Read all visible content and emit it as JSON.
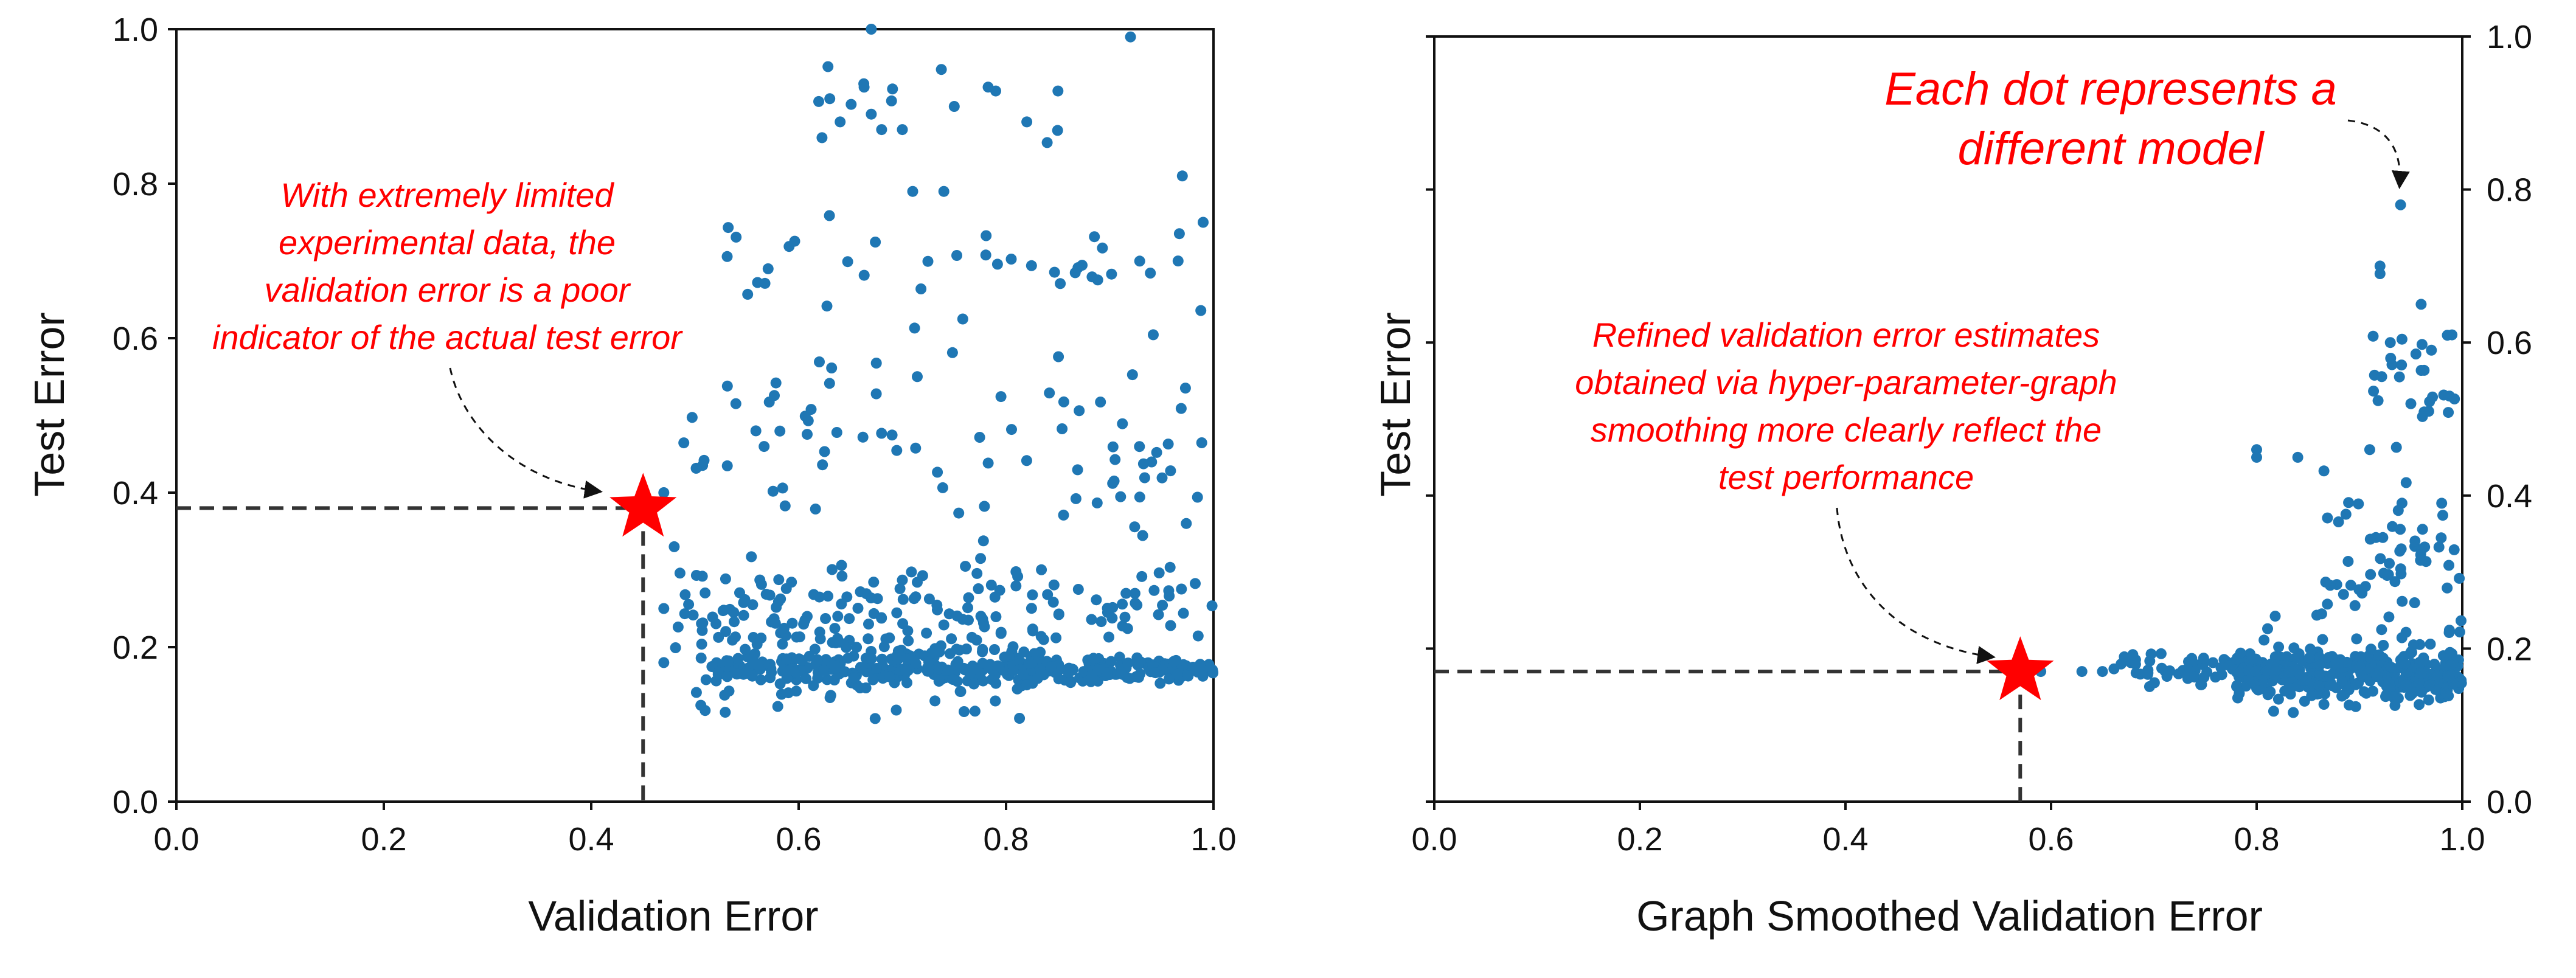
{
  "chart_data": [
    {
      "type": "scatter",
      "title": "",
      "xlabel": "Validation Error",
      "ylabel": "Test Error",
      "xlim": [
        0.0,
        1.0
      ],
      "ylim": [
        0.0,
        1.0
      ],
      "x_ticks": [
        "0.0",
        "0.2",
        "0.4",
        "0.6",
        "0.8",
        "1.0"
      ],
      "y_ticks": [
        "0.0",
        "0.2",
        "0.4",
        "0.6",
        "0.8",
        "1.0"
      ],
      "y_axis_side": "left",
      "grid": false,
      "point_color": "#1f77b4",
      "highlight": {
        "x": 0.45,
        "y": 0.38,
        "marker": "star",
        "color": "#ff0000"
      },
      "annotation": {
        "lines": [
          "With extremely limited",
          "experimental data, the",
          "validation error is a poor",
          "indicator of the actual test error"
        ],
        "color": "#ff0000"
      },
      "seed": 12345,
      "cloud": [
        {
          "n": 330,
          "x": [
            0.52,
            1.0
          ],
          "y": [
            0.15,
            0.19
          ]
        },
        {
          "n": 160,
          "x": [
            0.5,
            0.85
          ],
          "y": [
            0.1,
            0.3
          ]
        },
        {
          "n": 110,
          "x": [
            0.48,
            1.0
          ],
          "y": [
            0.19,
            0.32
          ]
        },
        {
          "n": 80,
          "x": [
            0.48,
            1.0
          ],
          "y": [
            0.32,
            0.6
          ]
        },
        {
          "n": 40,
          "x": [
            0.52,
            1.0
          ],
          "y": [
            0.6,
            0.8
          ]
        },
        {
          "n": 12,
          "x": [
            0.6,
            0.95
          ],
          "y": [
            0.8,
            1.0
          ]
        }
      ],
      "points": [
        [
          0.45,
          0.37
        ],
        [
          0.47,
          0.4
        ],
        [
          0.48,
          0.33
        ],
        [
          0.47,
          0.25
        ],
        [
          0.47,
          0.18
        ],
        [
          0.63,
          0.91
        ],
        [
          0.64,
          0.88
        ],
        [
          0.67,
          0.89
        ],
        [
          0.68,
          0.87
        ],
        [
          0.7,
          0.87
        ],
        [
          0.75,
          0.9
        ],
        [
          0.79,
          0.92
        ],
        [
          0.82,
          0.88
        ],
        [
          0.85,
          0.92
        ],
        [
          0.92,
          0.99
        ],
        [
          0.67,
          1.0
        ],
        [
          0.97,
          0.81
        ],
        [
          0.99,
          0.75
        ],
        [
          0.71,
          0.79
        ],
        [
          0.74,
          0.79
        ]
      ]
    },
    {
      "type": "scatter",
      "title": "",
      "xlabel": "Graph Smoothed Validation Error",
      "ylabel": "Test Error",
      "xlim": [
        0.0,
        1.0
      ],
      "ylim": [
        0.0,
        1.0
      ],
      "x_ticks": [
        "0.0",
        "0.2",
        "0.4",
        "0.6",
        "0.8",
        "1.0"
      ],
      "y_ticks": [
        "0.0",
        "0.2",
        "0.4",
        "0.6",
        "0.8",
        "1.0"
      ],
      "y_axis_side": "right",
      "grid": false,
      "point_color": "#1f77b4",
      "highlight": {
        "x": 0.57,
        "y": 0.17,
        "marker": "star",
        "color": "#ff0000"
      },
      "annotation": {
        "lines": [
          "Refined validation error estimates",
          "obtained via hyper-parameter-graph",
          "smoothing more clearly reflect the",
          "test performance"
        ],
        "color": "#ff0000"
      },
      "callout": {
        "lines": [
          "Each dot represents a",
          "different model"
        ],
        "color": "#00b050"
      },
      "seed": 67890,
      "cloud": [
        {
          "n": 330,
          "x": [
            0.78,
            1.0
          ],
          "y": [
            0.13,
            0.2
          ]
        },
        {
          "n": 60,
          "x": [
            0.66,
            0.8
          ],
          "y": [
            0.15,
            0.2
          ]
        },
        {
          "n": 70,
          "x": [
            0.8,
            1.0
          ],
          "y": [
            0.1,
            0.26
          ]
        },
        {
          "n": 55,
          "x": [
            0.86,
            1.0
          ],
          "y": [
            0.2,
            0.45
          ]
        },
        {
          "n": 25,
          "x": [
            0.9,
            1.0
          ],
          "y": [
            0.45,
            0.62
          ]
        }
      ],
      "points": [
        [
          0.59,
          0.17
        ],
        [
          0.63,
          0.17
        ],
        [
          0.65,
          0.17
        ],
        [
          0.8,
          0.46
        ],
        [
          0.8,
          0.45
        ],
        [
          0.84,
          0.45
        ],
        [
          0.91,
          0.46
        ],
        [
          0.92,
          0.7
        ],
        [
          0.92,
          0.69
        ],
        [
          0.96,
          0.65
        ],
        [
          0.94,
          0.78
        ],
        [
          0.99,
          0.61
        ],
        [
          0.95,
          0.52
        ],
        [
          0.97,
          0.59
        ],
        [
          0.98,
          0.39
        ],
        [
          0.93,
          0.6
        ]
      ]
    }
  ]
}
